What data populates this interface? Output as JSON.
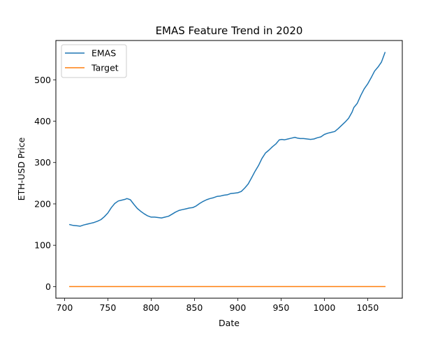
{
  "chart_data": {
    "type": "line",
    "title": "EMAS Feature Trend in 2020",
    "xlabel": "Date",
    "ylabel": "ETH-USD Price",
    "xlim": [
      690,
      1090
    ],
    "ylim": [
      -28,
      595
    ],
    "xticks": [
      700,
      750,
      800,
      850,
      900,
      950,
      1000,
      1050
    ],
    "yticks": [
      0,
      100,
      200,
      300,
      400,
      500
    ],
    "grid": false,
    "legend_position": "top-left",
    "series": [
      {
        "name": "EMAS",
        "color": "#1f77b4",
        "x": [
          706,
          710,
          714,
          718,
          722,
          726,
          730,
          734,
          738,
          742,
          746,
          750,
          754,
          758,
          762,
          766,
          770,
          772,
          776,
          780,
          784,
          788,
          792,
          796,
          800,
          804,
          808,
          812,
          816,
          820,
          824,
          828,
          832,
          836,
          840,
          844,
          848,
          852,
          856,
          860,
          864,
          868,
          872,
          876,
          880,
          884,
          888,
          892,
          896,
          900,
          904,
          908,
          912,
          916,
          920,
          924,
          928,
          932,
          936,
          940,
          944,
          948,
          951,
          954,
          958,
          962,
          966,
          969,
          972,
          976,
          980,
          984,
          988,
          992,
          996,
          1000,
          1004,
          1008,
          1012,
          1016,
          1020,
          1024,
          1028,
          1032,
          1034,
          1038,
          1042,
          1046,
          1050,
          1054,
          1058,
          1062,
          1066,
          1070
        ],
        "y": [
          150,
          148,
          147,
          146,
          149,
          151,
          153,
          155,
          158,
          162,
          169,
          178,
          191,
          201,
          207,
          209,
          211,
          213,
          210,
          199,
          189,
          182,
          176,
          171,
          168,
          168,
          167,
          166,
          168,
          170,
          175,
          180,
          184,
          186,
          188,
          190,
          191,
          195,
          201,
          206,
          210,
          213,
          215,
          218,
          219,
          221,
          222,
          225,
          226,
          227,
          230,
          238,
          248,
          263,
          279,
          293,
          310,
          323,
          330,
          338,
          345,
          355,
          356,
          355,
          357,
          359,
          361,
          359,
          358,
          358,
          357,
          356,
          357,
          360,
          362,
          368,
          371,
          373,
          375,
          382,
          390,
          398,
          407,
          422,
          433,
          443,
          462,
          478,
          490,
          505,
          521,
          531,
          543,
          566
        ]
      },
      {
        "name": "Target",
        "color": "#ff7f0e",
        "x": [
          706,
          1070
        ],
        "y": [
          0,
          0
        ]
      }
    ]
  }
}
